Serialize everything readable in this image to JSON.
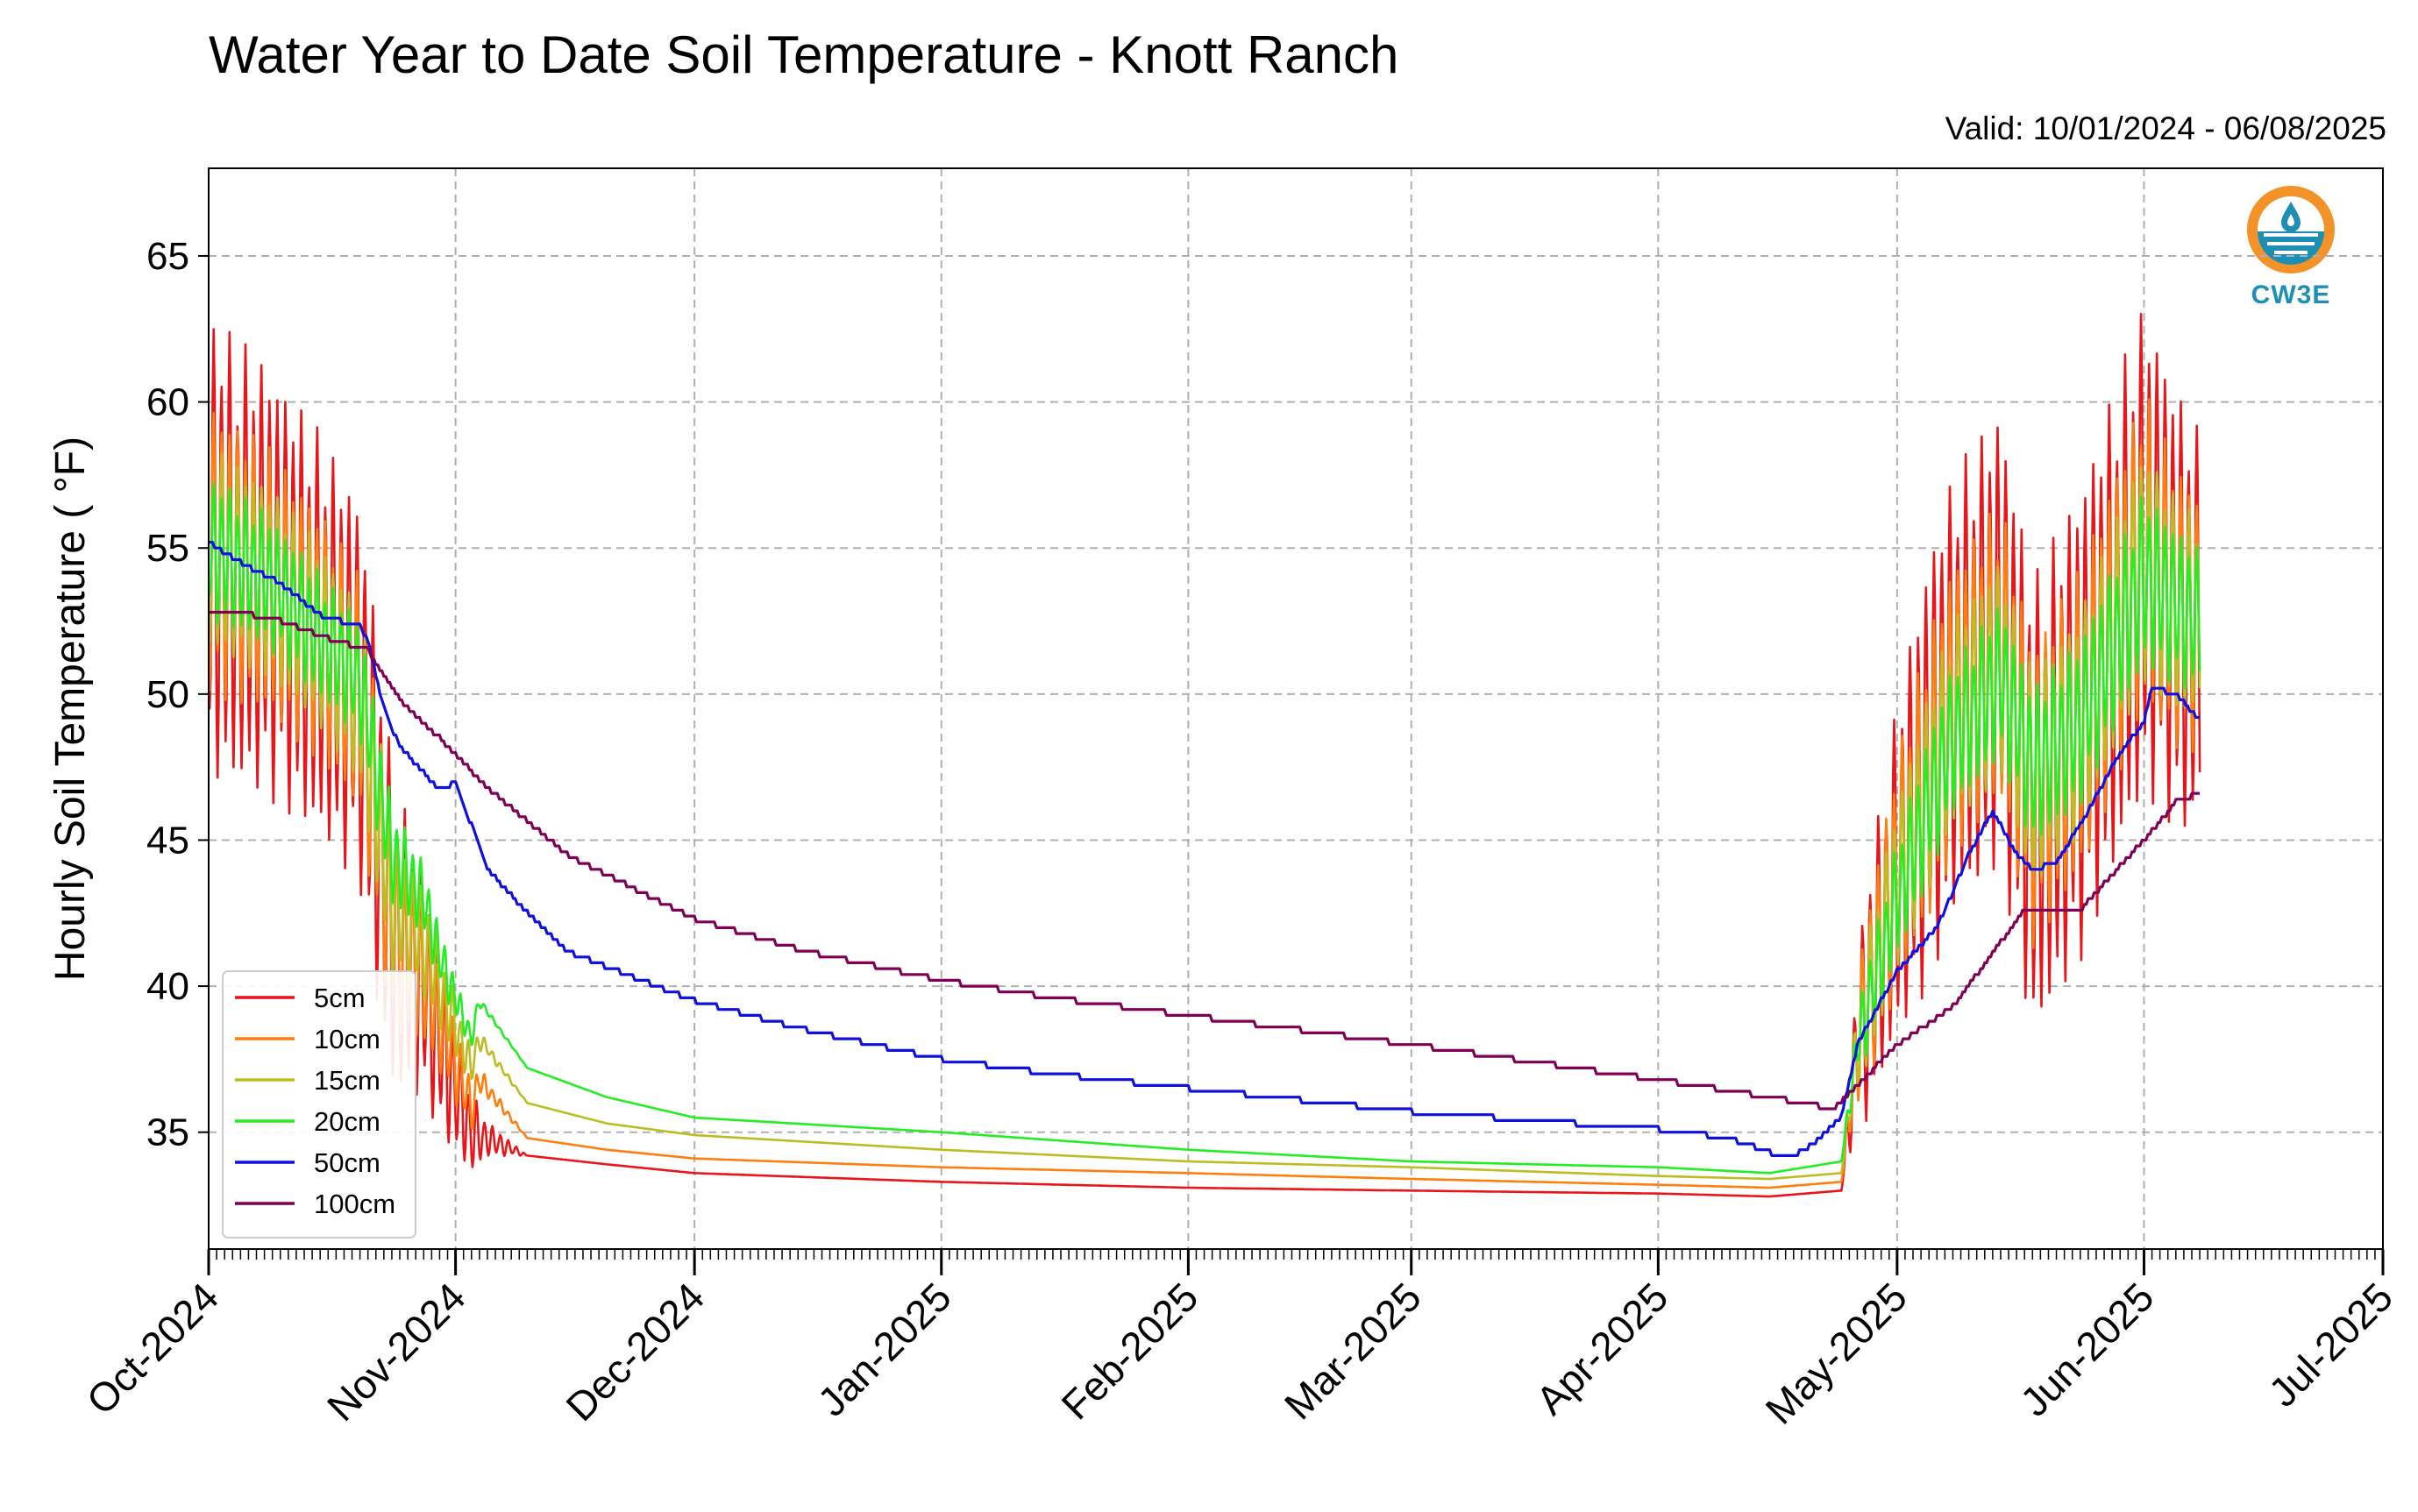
{
  "title": "Water Year to Date Soil Temperature - Knott Ranch",
  "valid": "Valid: 10/01/2024 - 06/08/2025",
  "logo_text": "CW3E",
  "chart_data": {
    "type": "line",
    "title": "Water Year to Date Soil Temperature - Knott Ranch",
    "ylabel": "Hourly Soil Temperature ( °F)",
    "xlabel": "",
    "xlim": [
      "2024-10-01",
      "2025-07-01"
    ],
    "ylim": [
      31,
      68
    ],
    "grid": true,
    "legend_position": "lower-left",
    "x_ticks": [
      "Oct-2024",
      "Nov-2024",
      "Dec-2024",
      "Jan-2025",
      "Feb-2025",
      "Mar-2025",
      "Apr-2025",
      "May-2025",
      "Jun-2025",
      "Jul-2025"
    ],
    "y_ticks": [
      35,
      40,
      45,
      50,
      55,
      60,
      65
    ],
    "series": [
      {
        "name": "5cm",
        "color": "#e8161b",
        "diurnal": true,
        "points": [
          [
            "2024-10-01",
            55.0
          ],
          [
            "2024-10-08",
            54.0
          ],
          [
            "2024-10-15",
            52.0
          ],
          [
            "2024-10-20",
            50.0
          ],
          [
            "2024-10-24",
            42.0
          ],
          [
            "2024-10-28",
            40.0
          ],
          [
            "2024-10-30",
            38.0
          ],
          [
            "2024-11-03",
            35.0
          ],
          [
            "2024-11-10",
            34.2
          ],
          [
            "2024-11-20",
            33.9
          ],
          [
            "2024-12-01",
            33.6
          ],
          [
            "2025-01-01",
            33.3
          ],
          [
            "2025-02-01",
            33.1
          ],
          [
            "2025-03-01",
            33.0
          ],
          [
            "2025-04-01",
            32.9
          ],
          [
            "2025-04-15",
            32.8
          ],
          [
            "2025-04-24",
            33.0
          ],
          [
            "2025-04-26",
            38.0
          ],
          [
            "2025-05-01",
            44.0
          ],
          [
            "2025-05-08",
            50.0
          ],
          [
            "2025-05-14",
            52.0
          ],
          [
            "2025-05-18",
            46.0
          ],
          [
            "2025-05-24",
            49.0
          ],
          [
            "2025-06-01",
            55.0
          ],
          [
            "2025-06-05",
            53.0
          ],
          [
            "2025-06-08",
            52.0
          ]
        ],
        "amplitude": [
          [
            "2024-10-01",
            8.0
          ],
          [
            "2024-10-22",
            6.5
          ],
          [
            "2024-10-30",
            3.0
          ],
          [
            "2024-11-05",
            0.6
          ],
          [
            "2024-11-10",
            0.0
          ],
          [
            "2025-04-24",
            0.0
          ],
          [
            "2025-04-27",
            4.0
          ],
          [
            "2025-05-05",
            7.5
          ],
          [
            "2025-06-01",
            8.5
          ],
          [
            "2025-06-08",
            7.0
          ]
        ]
      },
      {
        "name": "10cm",
        "color": "#ff7f0e",
        "diurnal": true,
        "points": [
          [
            "2024-10-01",
            55.0
          ],
          [
            "2024-10-08",
            54.0
          ],
          [
            "2024-10-15",
            52.0
          ],
          [
            "2024-10-20",
            50.0
          ],
          [
            "2024-10-24",
            42.0
          ],
          [
            "2024-10-28",
            40.5
          ],
          [
            "2024-10-30",
            39.0
          ],
          [
            "2024-11-03",
            35.8
          ],
          [
            "2024-11-04",
            36.8
          ],
          [
            "2024-11-10",
            34.8
          ],
          [
            "2024-11-20",
            34.4
          ],
          [
            "2024-12-01",
            34.1
          ],
          [
            "2025-01-01",
            33.8
          ],
          [
            "2025-02-01",
            33.6
          ],
          [
            "2025-03-01",
            33.4
          ],
          [
            "2025-04-01",
            33.2
          ],
          [
            "2025-04-15",
            33.1
          ],
          [
            "2025-04-24",
            33.3
          ],
          [
            "2025-04-26",
            38.0
          ],
          [
            "2025-05-01",
            44.0
          ],
          [
            "2025-05-08",
            49.5
          ],
          [
            "2025-05-14",
            51.5
          ],
          [
            "2025-05-18",
            46.5
          ],
          [
            "2025-05-24",
            49.0
          ],
          [
            "2025-06-01",
            55.0
          ],
          [
            "2025-06-05",
            53.0
          ],
          [
            "2025-06-08",
            52.5
          ]
        ],
        "amplitude": [
          [
            "2024-10-01",
            5.0
          ],
          [
            "2024-10-22",
            4.0
          ],
          [
            "2024-10-30",
            2.0
          ],
          [
            "2024-11-05",
            0.3
          ],
          [
            "2024-11-10",
            0.0
          ],
          [
            "2025-04-24",
            0.0
          ],
          [
            "2025-04-27",
            3.0
          ],
          [
            "2025-05-05",
            5.0
          ],
          [
            "2025-06-01",
            5.5
          ],
          [
            "2025-06-08",
            4.5
          ]
        ]
      },
      {
        "name": "15cm",
        "color": "#bcbd22",
        "diurnal": true,
        "points": [
          [
            "2024-10-01",
            55.0
          ],
          [
            "2024-10-08",
            54.0
          ],
          [
            "2024-10-15",
            52.0
          ],
          [
            "2024-10-20",
            50.0
          ],
          [
            "2024-10-24",
            43.0
          ],
          [
            "2024-10-28",
            41.5
          ],
          [
            "2024-10-30",
            40.0
          ],
          [
            "2024-11-03",
            37.2
          ],
          [
            "2024-11-04",
            38.2
          ],
          [
            "2024-11-10",
            36.0
          ],
          [
            "2024-11-20",
            35.3
          ],
          [
            "2024-12-01",
            34.9
          ],
          [
            "2025-01-01",
            34.4
          ],
          [
            "2025-02-01",
            34.0
          ],
          [
            "2025-03-01",
            33.8
          ],
          [
            "2025-04-01",
            33.5
          ],
          [
            "2025-04-15",
            33.4
          ],
          [
            "2025-04-24",
            33.6
          ],
          [
            "2025-04-26",
            38.0
          ],
          [
            "2025-05-01",
            43.5
          ],
          [
            "2025-05-08",
            49.0
          ],
          [
            "2025-05-14",
            51.0
          ],
          [
            "2025-05-18",
            47.0
          ],
          [
            "2025-05-24",
            49.0
          ],
          [
            "2025-06-01",
            54.5
          ],
          [
            "2025-06-05",
            53.0
          ],
          [
            "2025-06-08",
            52.5
          ]
        ],
        "amplitude": [
          [
            "2024-10-01",
            3.5
          ],
          [
            "2024-10-22",
            3.0
          ],
          [
            "2024-10-30",
            1.5
          ],
          [
            "2024-11-05",
            0.2
          ],
          [
            "2024-11-10",
            0.0
          ],
          [
            "2025-04-24",
            0.0
          ],
          [
            "2025-04-27",
            2.2
          ],
          [
            "2025-05-05",
            3.5
          ],
          [
            "2025-06-01",
            4.0
          ],
          [
            "2025-06-08",
            3.5
          ]
        ]
      },
      {
        "name": "20cm",
        "color": "#22ee22",
        "diurnal": true,
        "points": [
          [
            "2024-10-01",
            55.0
          ],
          [
            "2024-10-08",
            54.0
          ],
          [
            "2024-10-15",
            52.0
          ],
          [
            "2024-10-20",
            50.5
          ],
          [
            "2024-10-24",
            44.5
          ],
          [
            "2024-10-28",
            43.0
          ],
          [
            "2024-10-30",
            41.0
          ],
          [
            "2024-11-03",
            38.2
          ],
          [
            "2024-11-04",
            39.5
          ],
          [
            "2024-11-10",
            37.2
          ],
          [
            "2024-11-20",
            36.2
          ],
          [
            "2024-12-01",
            35.5
          ],
          [
            "2025-01-01",
            35.0
          ],
          [
            "2025-02-01",
            34.4
          ],
          [
            "2025-03-01",
            34.0
          ],
          [
            "2025-04-01",
            33.8
          ],
          [
            "2025-04-15",
            33.6
          ],
          [
            "2025-04-24",
            34.0
          ],
          [
            "2025-04-26",
            38.0
          ],
          [
            "2025-05-01",
            43.0
          ],
          [
            "2025-05-08",
            48.5
          ],
          [
            "2025-05-14",
            50.5
          ],
          [
            "2025-05-18",
            47.5
          ],
          [
            "2025-05-24",
            49.0
          ],
          [
            "2025-06-01",
            54.0
          ],
          [
            "2025-06-05",
            53.0
          ],
          [
            "2025-06-08",
            52.5
          ]
        ],
        "amplitude": [
          [
            "2024-10-01",
            2.5
          ],
          [
            "2024-10-22",
            2.0
          ],
          [
            "2024-10-30",
            1.0
          ],
          [
            "2024-11-05",
            0.1
          ],
          [
            "2024-11-10",
            0.0
          ],
          [
            "2025-04-24",
            0.0
          ],
          [
            "2025-04-27",
            1.5
          ],
          [
            "2025-05-05",
            2.5
          ],
          [
            "2025-06-01",
            3.0
          ],
          [
            "2025-06-08",
            2.5
          ]
        ]
      },
      {
        "name": "50cm",
        "color": "#1010e0",
        "diurnal": false,
        "points": [
          [
            "2024-10-01",
            55.2
          ],
          [
            "2024-10-05",
            54.5
          ],
          [
            "2024-10-10",
            53.8
          ],
          [
            "2024-10-15",
            52.7
          ],
          [
            "2024-10-20",
            52.3
          ],
          [
            "2024-10-21",
            51.8
          ],
          [
            "2024-10-23",
            49.5
          ],
          [
            "2024-10-25",
            48.2
          ],
          [
            "2024-10-28",
            47.3
          ],
          [
            "2024-10-30",
            46.7
          ],
          [
            "2024-11-01",
            47.0
          ],
          [
            "2024-11-05",
            44.0
          ],
          [
            "2024-11-10",
            42.5
          ],
          [
            "2024-11-15",
            41.2
          ],
          [
            "2024-12-01",
            39.5
          ],
          [
            "2024-12-15",
            38.5
          ],
          [
            "2025-01-01",
            37.5
          ],
          [
            "2025-01-15",
            37.0
          ],
          [
            "2025-02-01",
            36.5
          ],
          [
            "2025-03-01",
            35.7
          ],
          [
            "2025-04-01",
            35.1
          ],
          [
            "2025-04-10",
            34.8
          ],
          [
            "2025-04-15",
            34.3
          ],
          [
            "2025-04-18",
            34.2
          ],
          [
            "2025-04-20",
            34.5
          ],
          [
            "2025-04-24",
            35.5
          ],
          [
            "2025-04-26",
            38.0
          ],
          [
            "2025-05-01",
            40.5
          ],
          [
            "2025-05-06",
            42.0
          ],
          [
            "2025-05-10",
            44.5
          ],
          [
            "2025-05-13",
            46.0
          ],
          [
            "2025-05-16",
            44.5
          ],
          [
            "2025-05-18",
            44.0
          ],
          [
            "2025-05-21",
            44.2
          ],
          [
            "2025-05-25",
            46.0
          ],
          [
            "2025-05-29",
            48.0
          ],
          [
            "2025-06-01",
            49.0
          ],
          [
            "2025-06-02",
            50.2
          ],
          [
            "2025-06-05",
            50.0
          ],
          [
            "2025-06-08",
            49.1
          ]
        ]
      },
      {
        "name": "100cm",
        "color": "#800055",
        "diurnal": false,
        "points": [
          [
            "2024-10-01",
            52.8
          ],
          [
            "2024-10-05",
            52.8
          ],
          [
            "2024-10-10",
            52.5
          ],
          [
            "2024-10-15",
            52.0
          ],
          [
            "2024-10-21",
            51.5
          ],
          [
            "2024-10-25",
            49.8
          ],
          [
            "2024-10-30",
            48.5
          ],
          [
            "2024-11-05",
            46.8
          ],
          [
            "2024-11-15",
            44.5
          ],
          [
            "2024-12-01",
            42.3
          ],
          [
            "2024-12-15",
            41.2
          ],
          [
            "2025-01-01",
            40.2
          ],
          [
            "2025-01-15",
            39.6
          ],
          [
            "2025-02-01",
            39.0
          ],
          [
            "2025-03-01",
            38.0
          ],
          [
            "2025-04-01",
            36.8
          ],
          [
            "2025-04-15",
            36.2
          ],
          [
            "2025-04-23",
            35.8
          ],
          [
            "2025-04-26",
            36.6
          ],
          [
            "2025-05-01",
            38.0
          ],
          [
            "2025-05-08",
            39.3
          ],
          [
            "2025-05-14",
            41.5
          ],
          [
            "2025-05-17",
            42.6
          ],
          [
            "2025-05-24",
            42.6
          ],
          [
            "2025-05-27",
            43.5
          ],
          [
            "2025-06-01",
            45.0
          ],
          [
            "2025-06-05",
            46.3
          ],
          [
            "2025-06-08",
            46.6
          ]
        ]
      }
    ]
  }
}
